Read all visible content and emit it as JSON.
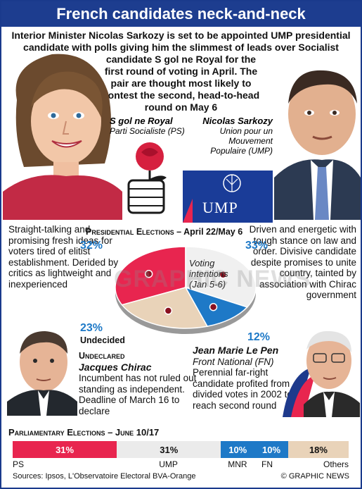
{
  "title": "French candidates neck-and-neck",
  "intro": {
    "line1": "Interior Minister Nicolas Sarkozy is set to be appointed UMP presidential candidate with polls giving him the slimmest of leads over Socialist",
    "line2": "candidate S  gol  ne Royal for the first round of voting in April. The pair are thought most likely to contest the second, head-to-head round on May 6"
  },
  "royal": {
    "name": "S  gol  ne Royal",
    "party": "Parti Socialiste (PS)",
    "description": "Straight-talking and promising fresh ideas for voters tired of elitist establishment. Derided by critics as lightweight and inexperienced",
    "share": "32%"
  },
  "sarkozy": {
    "name": "Nicolas Sarkozy",
    "party": "Union pour un Mouvement Populaire (UMP)",
    "description": "Driven and energetic with tough stance on law and order. Divisive candidate despite promises to unite country, tainted by association with Chirac government",
    "share": "33%"
  },
  "ump_logo_text": "UMP",
  "presidential": {
    "label_prefix": "Presidential Elections",
    "label_dates": " – April 22/May 6",
    "voting": "Voting intentions (Jan 5-6)"
  },
  "undecided": {
    "share": "23%",
    "label": "Undecided"
  },
  "chirac": {
    "status": "Undeclared",
    "name": "Jacques Chirac",
    "description": "Incumbent has not ruled out standing as independent. Deadline of March 16 to declare"
  },
  "lepen": {
    "share": "12%",
    "name": "Jean Marie Le Pen",
    "party": "Front National (FN)",
    "description": "Perennial far-right candidate profited from divided votes in 2002 to reach second round"
  },
  "watermark": "GRAPHIC NEWS",
  "chart_data": [
    {
      "type": "pie",
      "title": "Voting intentions (Jan 5-6)",
      "categories": [
        "Royal (PS)",
        "Sarkozy (UMP)",
        "Le Pen (FN)",
        "Undecided"
      ],
      "values": [
        32,
        33,
        12,
        23
      ],
      "colors": [
        "#e8254f",
        "#f0f0f0",
        "#1e79c7",
        "#e9d3b9"
      ]
    },
    {
      "type": "bar",
      "title": "Parliamentary Elections – June 10/17",
      "categories": [
        "PS",
        "UMP",
        "MNR",
        "FN",
        "Others"
      ],
      "values": [
        31,
        31,
        10,
        10,
        18
      ],
      "labels": [
        "31%",
        "31%",
        "10%",
        "10%",
        "18%"
      ],
      "colors": [
        "#e8254f",
        "#ebebeb",
        "#1e79c7",
        "#1e79c7",
        "#e9d3b9"
      ]
    }
  ],
  "parliamentary": {
    "label_prefix": "Parliamentary Elections",
    "label_dates": " – June 10/17"
  },
  "sources": "Sources: Ipsos, L'Observatoire Electoral BVA-Orange",
  "credit": "© GRAPHIC NEWS"
}
